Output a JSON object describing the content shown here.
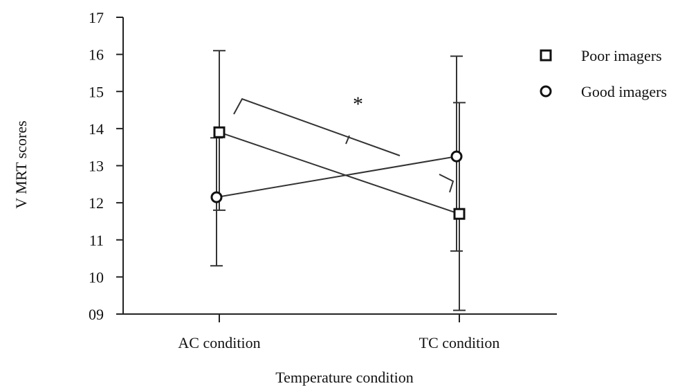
{
  "chart_data": {
    "type": "line",
    "title": "",
    "xlabel": "Temperature condition",
    "ylabel": "V MRT scores",
    "categories": [
      "AC condition",
      "TC condition"
    ],
    "ylim": [
      9,
      17
    ],
    "yticks": [
      9,
      10,
      11,
      12,
      13,
      14,
      15,
      16,
      17
    ],
    "ytick_labels": [
      "09",
      "10",
      "11",
      "12",
      "13",
      "14",
      "15",
      "16",
      "17"
    ],
    "grid": false,
    "legend_position": "right",
    "series": [
      {
        "name": "Poor imagers",
        "marker": "square",
        "values": [
          13.9,
          11.7
        ],
        "error_low": [
          11.8,
          9.1
        ],
        "error_high": [
          16.1,
          14.7
        ]
      },
      {
        "name": "Good imagers",
        "marker": "circle",
        "values": [
          12.15,
          13.25
        ],
        "error_low": [
          10.3,
          10.7
        ],
        "error_high": [
          13.75,
          15.95
        ]
      }
    ],
    "annotations": [
      {
        "text": "*",
        "type": "significance-bracket"
      }
    ]
  }
}
